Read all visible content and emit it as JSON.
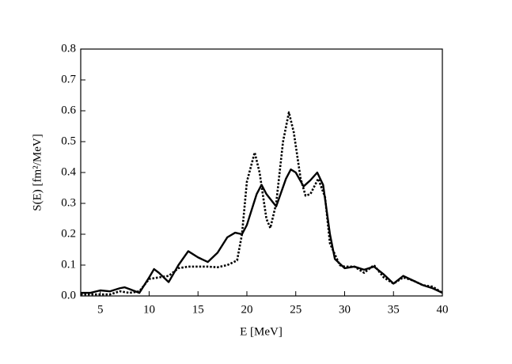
{
  "chart_data": {
    "type": "line",
    "xlabel": "E [MeV]",
    "ylabel": "S(E) [fm²/MeV]",
    "xlim": [
      3,
      40
    ],
    "xticks": [
      5,
      10,
      15,
      20,
      25,
      30,
      35,
      40
    ],
    "ylim": [
      0,
      0.8
    ],
    "yticks": [
      {
        "value": 0,
        "label": "0.0"
      },
      0.1,
      0.2,
      0.3,
      0.4,
      0.5,
      0.6,
      0.7,
      0.8
    ],
    "series": [
      {
        "color": "#000000",
        "style": "solid",
        "x": [
          3,
          4,
          5,
          6,
          7,
          7.5,
          8,
          9,
          10,
          10.5,
          11,
          12,
          13,
          14,
          15,
          16,
          17,
          18,
          18.8,
          19.5,
          20,
          21,
          21.5,
          22,
          23,
          24,
          24.5,
          25,
          25.8,
          26.5,
          27.2,
          27.8,
          28.5,
          29,
          30,
          31,
          32,
          33,
          34,
          35,
          36,
          37,
          38,
          39,
          40
        ],
        "values": [
          0.01,
          0.01,
          0.018,
          0.015,
          0.025,
          0.028,
          0.022,
          0.01,
          0.06,
          0.087,
          0.075,
          0.045,
          0.1,
          0.145,
          0.125,
          0.11,
          0.14,
          0.19,
          0.205,
          0.2,
          0.23,
          0.33,
          0.36,
          0.33,
          0.29,
          0.38,
          0.41,
          0.4,
          0.355,
          0.375,
          0.4,
          0.36,
          0.2,
          0.12,
          0.09,
          0.095,
          0.085,
          0.095,
          0.07,
          0.04,
          0.065,
          0.05,
          0.035,
          0.025,
          0.01
        ]
      },
      {
        "color": "#000000",
        "style": "dotted",
        "x": [
          3,
          4,
          5,
          6,
          7,
          8,
          9,
          10,
          11,
          12,
          13,
          14,
          15,
          16,
          17,
          18,
          19,
          19.5,
          20,
          20.8,
          21.3,
          22,
          22.4,
          23,
          23.7,
          24.3,
          24.8,
          25.5,
          26,
          26.5,
          27.3,
          28,
          28.5,
          29.5,
          30,
          31,
          32,
          33,
          34,
          35,
          36,
          37,
          38,
          39,
          40
        ],
        "values": [
          0.005,
          0.005,
          0.005,
          0.005,
          0.015,
          0.01,
          0.015,
          0.055,
          0.06,
          0.065,
          0.09,
          0.095,
          0.095,
          0.095,
          0.093,
          0.1,
          0.115,
          0.2,
          0.37,
          0.465,
          0.4,
          0.25,
          0.22,
          0.3,
          0.5,
          0.595,
          0.53,
          0.38,
          0.325,
          0.33,
          0.38,
          0.32,
          0.17,
          0.1,
          0.095,
          0.095,
          0.075,
          0.1,
          0.06,
          0.04,
          0.06,
          0.05,
          0.035,
          0.03,
          0.01
        ]
      }
    ]
  }
}
